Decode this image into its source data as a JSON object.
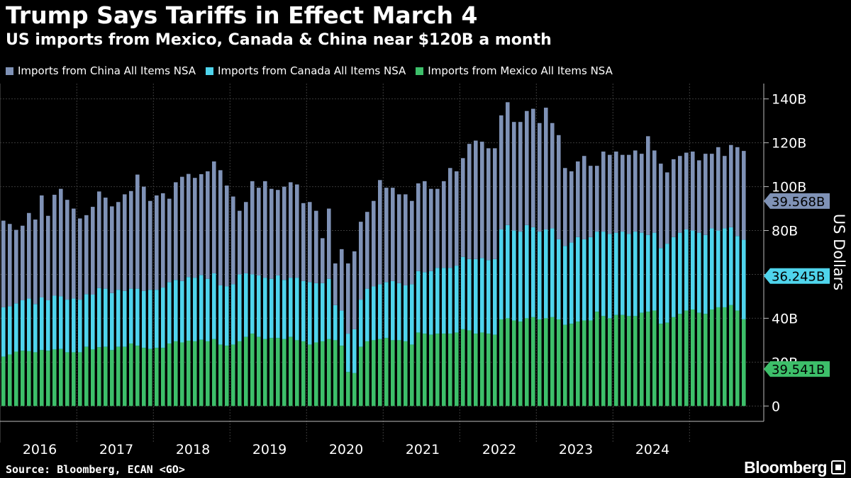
{
  "title": "Trump Says Tariffs in Effect March 4",
  "subtitle": "US imports from Mexico, Canada & China near $120B a month",
  "source": "Source: Bloomberg, ECAN <GO>",
  "brand": "Bloomberg",
  "chart_data": {
    "type": "bar",
    "stacked": true,
    "ylabel": "US Dollars",
    "ylim": [
      -7,
      147
    ],
    "yticks": [
      {
        "value": 0,
        "label": "0"
      },
      {
        "value": 20,
        "label": "20B"
      },
      {
        "value": 40,
        "label": "40B"
      },
      {
        "value": 60,
        "label": "60B"
      },
      {
        "value": 80,
        "label": "80B"
      },
      {
        "value": 100,
        "label": "100B"
      },
      {
        "value": 120,
        "label": "120B"
      },
      {
        "value": 140,
        "label": "140B"
      }
    ],
    "grid": true,
    "legend_position": "top-left",
    "years": [
      "2016",
      "2017",
      "2018",
      "2019",
      "2020",
      "2021",
      "2022",
      "2023",
      "2024"
    ],
    "series": [
      {
        "name": "Imports from Mexico All Items NSA",
        "color": "#3dbf6a",
        "last_value_label": "39.541B",
        "values": [
          22.5,
          23.5,
          24.8,
          25.2,
          25,
          24.5,
          25.5,
          25.2,
          25.8,
          26,
          24.5,
          24.5,
          24.5,
          27,
          25.8,
          26.8,
          27,
          25.5,
          27,
          27,
          28.5,
          27.5,
          26.5,
          26,
          26.5,
          26.5,
          28.5,
          29.5,
          29,
          29.8,
          29.5,
          30.2,
          29.5,
          30.5,
          28,
          27.5,
          28,
          29.5,
          31.5,
          33,
          31.5,
          30.5,
          31,
          31,
          30.5,
          31.5,
          30,
          29.5,
          28,
          29,
          29.5,
          30.5,
          30,
          27.5,
          15.5,
          15,
          27,
          29.5,
          30,
          30.5,
          31,
          30,
          30,
          29.5,
          28,
          33.5,
          33,
          32.5,
          33,
          33,
          33,
          33.5,
          35,
          34.5,
          33,
          33.5,
          33,
          32.5,
          39.5,
          40,
          39,
          38.5,
          40,
          40.5,
          39.5,
          40,
          40.5,
          39.5,
          37,
          37.5,
          38.5,
          39,
          39,
          43,
          41,
          40,
          41.5,
          41.5,
          41,
          41,
          42.5,
          43,
          43.5,
          37.5,
          38,
          40.5,
          42,
          43.5,
          44,
          42.5,
          42,
          44,
          45,
          45,
          46,
          43.5,
          39.541
        ]
      },
      {
        "name": "Imports from Canada All Items NSA",
        "color": "#4fd4ec",
        "last_value_label": "36.245B",
        "values": [
          22.5,
          22,
          22,
          23,
          24,
          22,
          24,
          23,
          24.5,
          24,
          24,
          24.5,
          24,
          24,
          25,
          27,
          26.5,
          26,
          26,
          25.5,
          25,
          26,
          26,
          27,
          26.5,
          27.5,
          28,
          28,
          28,
          29,
          29,
          29.5,
          28.5,
          30,
          27,
          27,
          27.5,
          30.5,
          29,
          27,
          28,
          28,
          27,
          28.5,
          27,
          27,
          28.5,
          27.5,
          28.5,
          27,
          26.5,
          27.5,
          16,
          16,
          17.5,
          20,
          21.5,
          24,
          24.5,
          25,
          25.5,
          27,
          26,
          25.5,
          27.5,
          28,
          28,
          29,
          30,
          30,
          30,
          30.5,
          33,
          32.5,
          34,
          34,
          33.5,
          34.5,
          41,
          42.5,
          41,
          41,
          42.5,
          41,
          40,
          40.5,
          40.5,
          36.5,
          36,
          37,
          38.5,
          37,
          38,
          36.5,
          38.5,
          38.5,
          37.5,
          38,
          37.5,
          38.5,
          36.5,
          35,
          35.5,
          34.5,
          36,
          36.5,
          37,
          37,
          36,
          36.5,
          36,
          37,
          35,
          36,
          35.5,
          34,
          36.245
        ]
      },
      {
        "name": "Imports from China All Items NSA",
        "color": "#7f92b6",
        "last_value_label": "39.568B",
        "values": [
          39.5,
          37.5,
          33.5,
          34,
          39,
          38.5,
          46.5,
          38.5,
          46,
          49,
          45.5,
          41,
          37,
          36,
          40,
          44,
          41.5,
          39.5,
          40,
          44,
          44.5,
          52,
          47.5,
          40.5,
          43,
          43,
          38,
          44.5,
          47.5,
          47,
          45.5,
          46,
          49,
          51,
          52.5,
          46,
          40,
          29,
          32.5,
          42.5,
          40,
          44,
          41,
          39,
          42.5,
          43.5,
          42.5,
          35.5,
          36.5,
          33,
          20.5,
          32,
          19,
          28,
          32,
          35.5,
          35.5,
          35,
          39,
          47.5,
          43,
          42.5,
          40.5,
          41.5,
          38,
          40,
          41.5,
          37.5,
          36,
          39.5,
          45.5,
          43,
          45,
          52.5,
          54,
          53,
          51,
          50.5,
          52,
          56,
          49.5,
          50,
          52,
          54,
          49.5,
          55.5,
          48,
          47.5,
          35.5,
          32.5,
          34.5,
          38,
          32.5,
          30,
          36.5,
          36,
          37,
          35,
          36,
          37,
          36,
          45,
          37.5,
          38.5,
          32.5,
          35.5,
          35,
          35,
          36,
          33,
          37,
          34,
          38,
          33,
          37.5,
          40.5,
          40.5,
          38.5,
          40,
          39.568
        ]
      }
    ]
  }
}
